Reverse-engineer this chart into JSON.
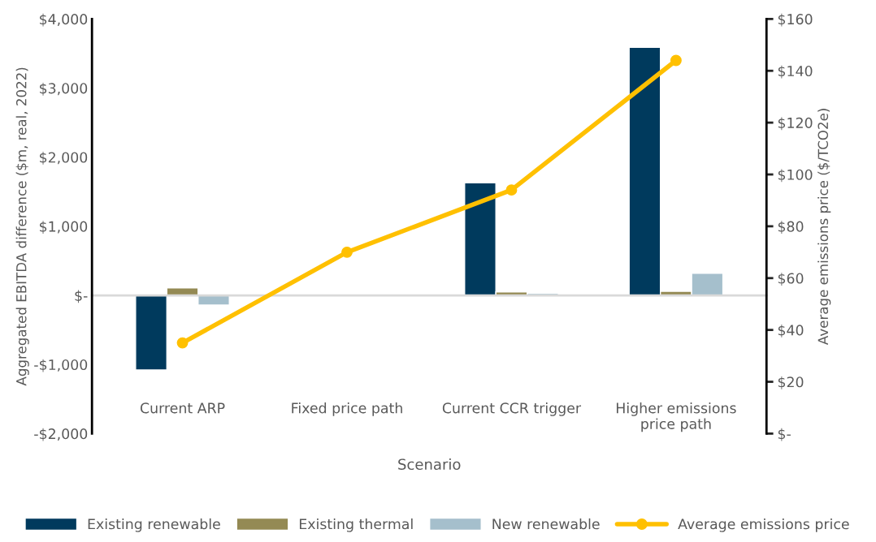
{
  "chart_data": {
    "type": "bar",
    "xlabel": "Scenario",
    "ylabel": "Aggregated EBITDA difference ($m, real, 2022)",
    "y2label": "Average emissions price ($/TCO2e)",
    "categories": [
      "Current ARP",
      "Fixed price path",
      "Current CCR trigger",
      "Higher emissions\nprice path"
    ],
    "series": [
      {
        "name": "Existing renewable",
        "color": "#003a5d",
        "values": [
          -1080,
          null,
          1630,
          3590
        ]
      },
      {
        "name": "Existing thermal",
        "color": "#948a54",
        "values": [
          110,
          null,
          50,
          60
        ]
      },
      {
        "name": "New renewable",
        "color": "#a5bfcc",
        "values": [
          -140,
          null,
          30,
          320
        ]
      },
      {
        "name": "Average emissions price",
        "type": "line",
        "axis": "y2",
        "color": "#ffc000",
        "marker": "circle",
        "values": [
          35,
          70,
          94,
          144
        ]
      }
    ],
    "ylim": [
      -2000,
      4000
    ],
    "yticks": [
      {
        "value": -2000,
        "label": "-$2,000"
      },
      {
        "value": -1000,
        "label": "-$1,000"
      },
      {
        "value": 0,
        "label": "$-"
      },
      {
        "value": 1000,
        "label": "$1,000"
      },
      {
        "value": 2000,
        "label": "$2,000"
      },
      {
        "value": 3000,
        "label": "$3,000"
      },
      {
        "value": 4000,
        "label": "$4,000"
      }
    ],
    "y2lim": [
      0,
      160
    ],
    "y2ticks": [
      {
        "value": 0,
        "label": "$-"
      },
      {
        "value": 20,
        "label": "$20"
      },
      {
        "value": 40,
        "label": "$40"
      },
      {
        "value": 60,
        "label": "$60"
      },
      {
        "value": 80,
        "label": "$80"
      },
      {
        "value": 100,
        "label": "$100"
      },
      {
        "value": 120,
        "label": "$120"
      },
      {
        "value": 140,
        "label": "$140"
      },
      {
        "value": 160,
        "label": "$160"
      }
    ],
    "legend": "bottom"
  }
}
